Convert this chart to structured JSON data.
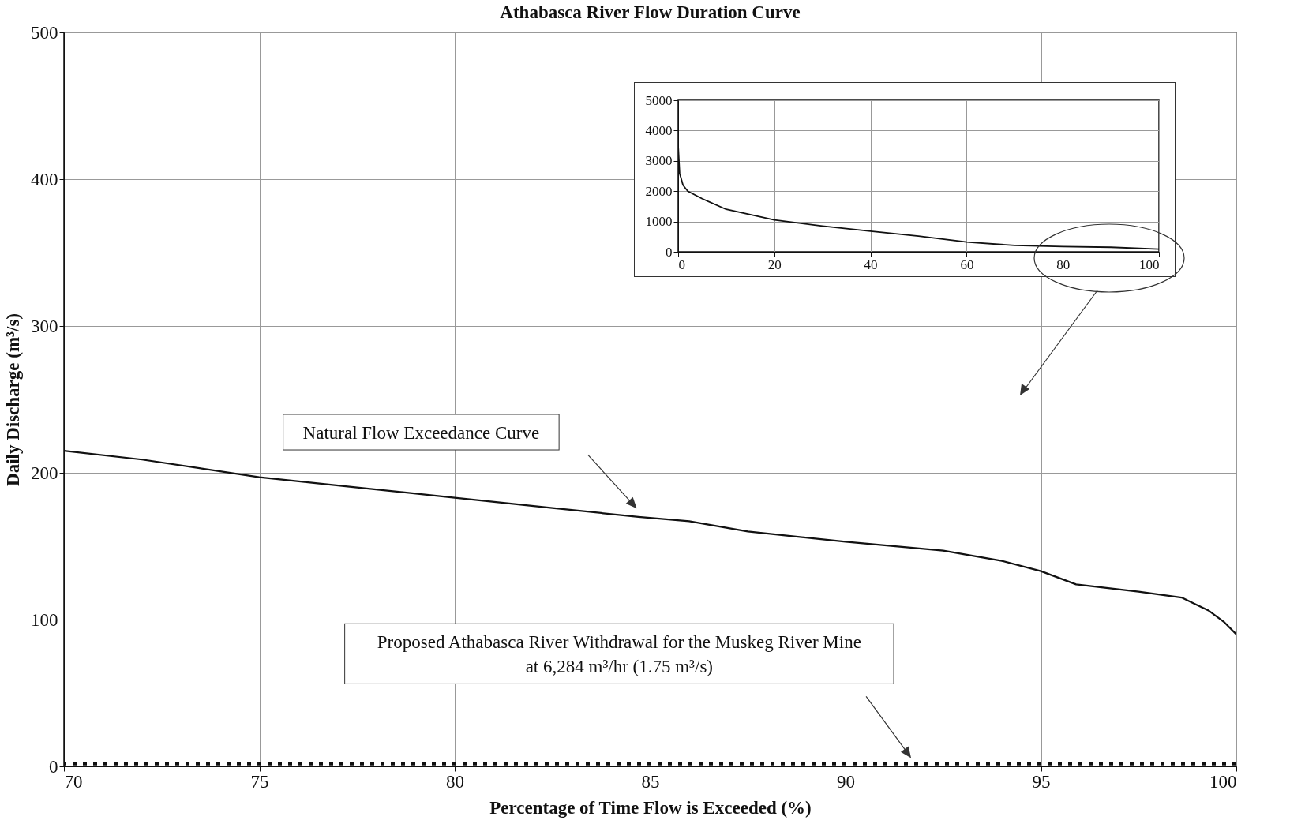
{
  "chart_data": [
    {
      "type": "line",
      "title": "Athabasca River Flow Duration Curve",
      "xlabel": "Percentage of Time Flow is Exceeded (%)",
      "ylabel": "Daily Discharge (m³/s)",
      "series": [
        {
          "color": "#111111",
          "x": [
            70,
            72,
            75,
            77.5,
            80,
            82.5,
            84.7,
            86,
            87.5,
            90,
            92.5,
            94,
            95,
            95.9,
            97.5,
            98.6,
            99.3,
            99.7,
            100
          ],
          "values": [
            215,
            209,
            197,
            190,
            183,
            176,
            170,
            167,
            160,
            153,
            147,
            140,
            133,
            124,
            119,
            115,
            106,
            98,
            90
          ]
        }
      ],
      "ref_lines": [
        {
          "axis": "y",
          "value": 1.75,
          "color": "#111111",
          "line_style": "dotted"
        }
      ],
      "xlim": [
        70,
        100
      ],
      "xticks": [
        70,
        75,
        80,
        85,
        90,
        95,
        100
      ],
      "ylim": [
        0,
        500
      ],
      "yticks": [
        0,
        100,
        200,
        300,
        400,
        500
      ],
      "grid": true,
      "marker": "none",
      "annotations": [
        "Natural Flow Exceedance Curve",
        "Proposed Athabasca River Withdrawal for the Muskeg River Mine\nat 6,284 m³/hr (1.75 m³/s)"
      ]
    },
    {
      "type": "line",
      "series": [
        {
          "color": "#111111",
          "x": [
            0,
            0.3,
            1,
            2,
            5,
            10,
            20,
            30,
            40,
            50,
            60,
            70,
            80,
            90,
            100
          ],
          "values": [
            3500,
            2600,
            2200,
            2000,
            1750,
            1400,
            1050,
            850,
            680,
            520,
            320,
            210,
            170,
            150,
            90
          ]
        }
      ],
      "xlim": [
        0,
        100
      ],
      "xticks": [
        0,
        20,
        40,
        60,
        80,
        100
      ],
      "ylim": [
        0,
        5000
      ],
      "yticks": [
        0,
        1000,
        2000,
        3000,
        4000,
        5000
      ],
      "grid": true,
      "marker": "none"
    }
  ]
}
